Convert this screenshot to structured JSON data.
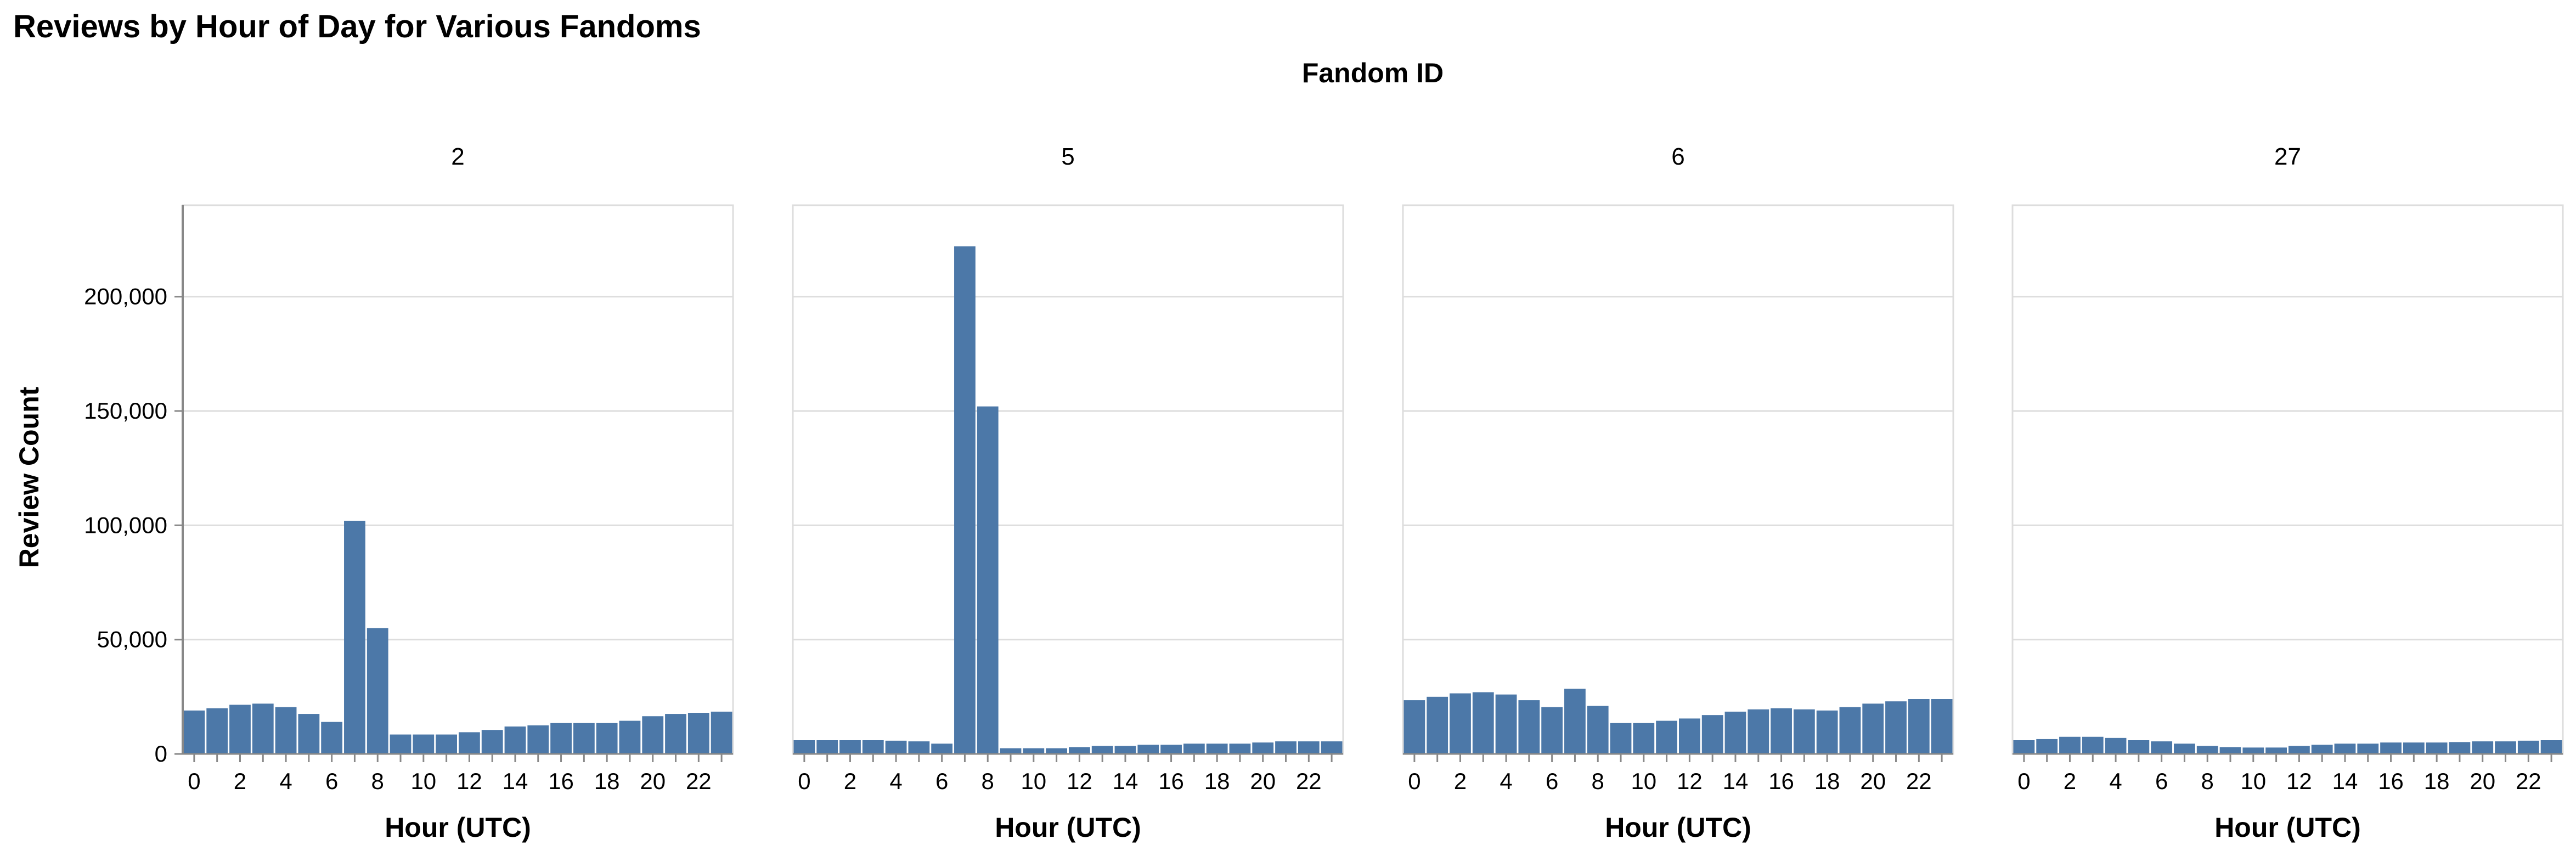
{
  "chart_data": {
    "type": "bar",
    "title": "Reviews by Hour of Day for Various Fandoms",
    "facet_label": "Fandom ID",
    "xlabel": "Hour (UTC)",
    "ylabel": "Review Count",
    "ylim": [
      0,
      240000
    ],
    "y_ticks": [
      0,
      50000,
      100000,
      150000,
      200000
    ],
    "y_tick_labels": [
      "0",
      "50,000",
      "100,000",
      "150,000",
      "200,000"
    ],
    "x_ticks": [
      0,
      2,
      4,
      6,
      8,
      10,
      12,
      14,
      16,
      18,
      20,
      22
    ],
    "categories": [
      0,
      1,
      2,
      3,
      4,
      5,
      6,
      7,
      8,
      9,
      10,
      11,
      12,
      13,
      14,
      15,
      16,
      17,
      18,
      19,
      20,
      21,
      22,
      23
    ],
    "bar_color": "#4c78a8",
    "grid": true,
    "facets": [
      {
        "name": "2",
        "values": [
          19000,
          20000,
          21500,
          22000,
          20500,
          17500,
          14000,
          102000,
          55000,
          8500,
          8500,
          8500,
          9500,
          10500,
          12000,
          12500,
          13500,
          13500,
          13500,
          14500,
          16500,
          17500,
          18000,
          18500
        ]
      },
      {
        "name": "5",
        "values": [
          6000,
          6000,
          6000,
          6000,
          5800,
          5500,
          4500,
          222000,
          152000,
          2500,
          2500,
          2500,
          3000,
          3500,
          3500,
          4000,
          4000,
          4500,
          4500,
          4500,
          5000,
          5500,
          5500,
          5500
        ]
      },
      {
        "name": "6",
        "values": [
          23500,
          25000,
          26500,
          27000,
          26000,
          23500,
          20500,
          28500,
          21000,
          13500,
          13500,
          14500,
          15500,
          17000,
          18500,
          19500,
          20000,
          19500,
          19000,
          20500,
          22000,
          23000,
          24000,
          24000
        ]
      },
      {
        "name": "27",
        "values": [
          6000,
          6500,
          7500,
          7500,
          7000,
          6000,
          5500,
          4500,
          3500,
          3000,
          2800,
          2800,
          3500,
          4000,
          4500,
          4500,
          5000,
          5000,
          5000,
          5200,
          5500,
          5500,
          5800,
          6000
        ]
      }
    ]
  }
}
